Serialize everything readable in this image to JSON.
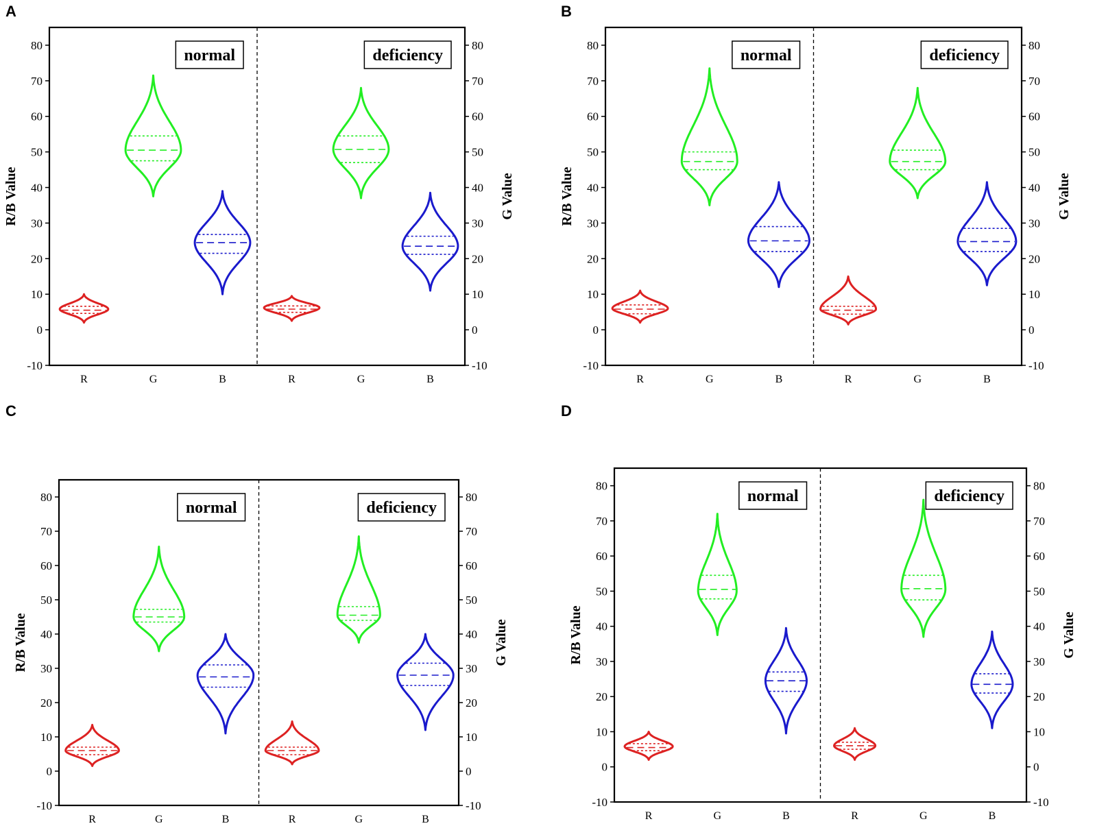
{
  "chart_data": [
    {
      "type": "violin",
      "panel": "A",
      "ylabel": "R/B Value",
      "ylabel_right": "G Value",
      "ylim": [
        -10,
        85
      ],
      "yticks": [
        -10,
        0,
        10,
        20,
        30,
        40,
        50,
        60,
        70,
        80
      ],
      "groups": [
        {
          "label": "normal",
          "violins": [
            {
              "cat": "R",
              "color": "#dd2222",
              "min": 2,
              "max": 10,
              "median": 5.5,
              "q1": 4.6,
              "q3": 6.6,
              "peak": 5.8,
              "width": 0.35
            },
            {
              "cat": "G",
              "color": "#22ee22",
              "min": 37.5,
              "max": 71.5,
              "median": 50.5,
              "q1": 47.5,
              "q3": 54.5,
              "peak": 50.5,
              "width": 0.4
            },
            {
              "cat": "B",
              "color": "#1a1acc",
              "min": 10,
              "max": 39,
              "median": 24.5,
              "q1": 21.5,
              "q3": 26.8,
              "peak": 24.5,
              "width": 0.4
            }
          ]
        },
        {
          "label": "deficiency",
          "violins": [
            {
              "cat": "R",
              "color": "#dd2222",
              "min": 2.5,
              "max": 9.5,
              "median": 5.8,
              "q1": 4.9,
              "q3": 6.7,
              "peak": 6.2,
              "width": 0.4
            },
            {
              "cat": "G",
              "color": "#22ee22",
              "min": 37,
              "max": 68,
              "median": 50.7,
              "q1": 47,
              "q3": 54.5,
              "peak": 50.7,
              "width": 0.4
            },
            {
              "cat": "B",
              "color": "#1a1acc",
              "min": 11,
              "max": 38.5,
              "median": 23.5,
              "q1": 21.2,
              "q3": 26.3,
              "peak": 23.5,
              "width": 0.4
            }
          ]
        }
      ]
    },
    {
      "type": "violin",
      "panel": "B",
      "ylabel": "R/B Value",
      "ylabel_right": "G Value",
      "ylim": [
        -10,
        85
      ],
      "yticks": [
        -10,
        0,
        10,
        20,
        30,
        40,
        50,
        60,
        70,
        80
      ],
      "groups": [
        {
          "label": "normal",
          "violins": [
            {
              "cat": "R",
              "color": "#dd2222",
              "min": 2,
              "max": 11,
              "median": 5.8,
              "q1": 4.5,
              "q3": 7,
              "peak": 6,
              "width": 0.4
            },
            {
              "cat": "G",
              "color": "#22ee22",
              "min": 35,
              "max": 73.5,
              "median": 47.3,
              "q1": 45,
              "q3": 50,
              "peak": 47.3,
              "width": 0.4
            },
            {
              "cat": "B",
              "color": "#1a1acc",
              "min": 12,
              "max": 41.5,
              "median": 25,
              "q1": 22,
              "q3": 29,
              "peak": 25,
              "width": 0.44
            }
          ]
        },
        {
          "label": "deficiency",
          "violins": [
            {
              "cat": "R",
              "color": "#dd2222",
              "min": 1.5,
              "max": 15,
              "median": 5.5,
              "q1": 4.4,
              "q3": 6.6,
              "peak": 5.8,
              "width": 0.4
            },
            {
              "cat": "G",
              "color": "#22ee22",
              "min": 37,
              "max": 68,
              "median": 47.3,
              "q1": 45,
              "q3": 50.5,
              "peak": 47.3,
              "width": 0.4
            },
            {
              "cat": "B",
              "color": "#1a1acc",
              "min": 12.5,
              "max": 41.5,
              "median": 24.8,
              "q1": 22,
              "q3": 28.5,
              "peak": 24.8,
              "width": 0.42
            }
          ]
        }
      ]
    },
    {
      "type": "violin",
      "panel": "C",
      "ylabel": "R/B Value",
      "ylabel_right": "G Value",
      "ylim": [
        -10,
        85
      ],
      "yticks": [
        -10,
        0,
        10,
        20,
        30,
        40,
        50,
        60,
        70,
        80
      ],
      "groups": [
        {
          "label": "normal",
          "violins": [
            {
              "cat": "R",
              "color": "#dd2222",
              "min": 1.5,
              "max": 13.5,
              "median": 6,
              "q1": 4.8,
              "q3": 7,
              "peak": 6,
              "width": 0.4
            },
            {
              "cat": "G",
              "color": "#22ee22",
              "min": 35,
              "max": 65.5,
              "median": 45,
              "q1": 43.5,
              "q3": 47.2,
              "peak": 45,
              "width": 0.38
            },
            {
              "cat": "B",
              "color": "#1a1acc",
              "min": 11,
              "max": 40,
              "median": 27.5,
              "q1": 24.5,
              "q3": 31,
              "peak": 28,
              "width": 0.42
            }
          ]
        },
        {
          "label": "deficiency",
          "violins": [
            {
              "cat": "R",
              "color": "#dd2222",
              "min": 2,
              "max": 14.5,
              "median": 6,
              "q1": 4.8,
              "q3": 7,
              "peak": 6,
              "width": 0.4
            },
            {
              "cat": "G",
              "color": "#22ee22",
              "min": 37.5,
              "max": 68.5,
              "median": 45.5,
              "q1": 44,
              "q3": 48,
              "peak": 45.5,
              "width": 0.32
            },
            {
              "cat": "B",
              "color": "#1a1acc",
              "min": 12,
              "max": 40,
              "median": 28,
              "q1": 25,
              "q3": 31.5,
              "peak": 28,
              "width": 0.42
            }
          ]
        }
      ]
    },
    {
      "type": "violin",
      "panel": "D",
      "ylabel": "R/B Value",
      "ylabel_right": "G Value",
      "ylim": [
        -10,
        85
      ],
      "yticks": [
        -10,
        0,
        10,
        20,
        30,
        40,
        50,
        60,
        70,
        80
      ],
      "groups": [
        {
          "label": "normal",
          "violins": [
            {
              "cat": "R",
              "color": "#dd2222",
              "min": 2,
              "max": 10,
              "median": 5.5,
              "q1": 4.6,
              "q3": 6.6,
              "peak": 5.8,
              "width": 0.35
            },
            {
              "cat": "G",
              "color": "#22ee22",
              "min": 37.5,
              "max": 72,
              "median": 50.5,
              "q1": 47.8,
              "q3": 54.5,
              "peak": 50,
              "width": 0.28
            },
            {
              "cat": "B",
              "color": "#1a1acc",
              "min": 9.5,
              "max": 39.5,
              "median": 24.5,
              "q1": 21.5,
              "q3": 27,
              "peak": 24.5,
              "width": 0.3
            }
          ]
        },
        {
          "label": "deficiency",
          "violins": [
            {
              "cat": "R",
              "color": "#dd2222",
              "min": 2,
              "max": 11,
              "median": 6,
              "q1": 5,
              "q3": 7,
              "peak": 6,
              "width": 0.3
            },
            {
              "cat": "G",
              "color": "#22ee22",
              "min": 37,
              "max": 76,
              "median": 50.7,
              "q1": 47.5,
              "q3": 54.5,
              "peak": 50.5,
              "width": 0.32
            },
            {
              "cat": "B",
              "color": "#1a1acc",
              "min": 11,
              "max": 38.5,
              "median": 23.5,
              "q1": 21,
              "q3": 26.5,
              "peak": 23.5,
              "width": 0.3
            }
          ]
        }
      ]
    }
  ]
}
